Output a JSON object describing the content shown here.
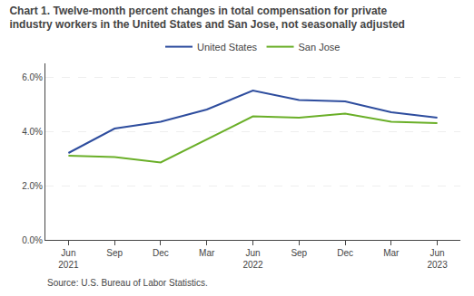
{
  "chart_data": {
    "type": "line",
    "title": "Chart 1. Twelve-month percent changes in total compensation for private\nindustry workers in the United States and San Jose, not seasonally adjusted",
    "annotations": [
      "Source: U.S. Bureau of Labor Statistics."
    ],
    "categories": [
      "Jun\n2021",
      "Sep",
      "Dec",
      "Mar",
      "Jun\n2022",
      "Sep",
      "Dec",
      "Mar",
      "Jun\n2023"
    ],
    "series": [
      {
        "name": "United States",
        "color": "#2e4d9e",
        "values": [
          3.2,
          4.1,
          4.35,
          4.8,
          5.5,
          5.15,
          5.1,
          4.7,
          4.5
        ]
      },
      {
        "name": "San Jose",
        "color": "#6aaf28",
        "values": [
          3.1,
          3.05,
          2.85,
          null,
          4.55,
          4.5,
          4.65,
          4.35,
          4.3
        ]
      }
    ],
    "ylim": [
      0.0,
      6.5
    ],
    "yticks": [
      {
        "value": 0.0,
        "label": "0.0%"
      },
      {
        "value": 2.0,
        "label": "2.0%"
      },
      {
        "value": 4.0,
        "label": "4.0%"
      },
      {
        "value": 6.0,
        "label": "6.0%"
      }
    ],
    "grid": true,
    "legend": "top"
  }
}
